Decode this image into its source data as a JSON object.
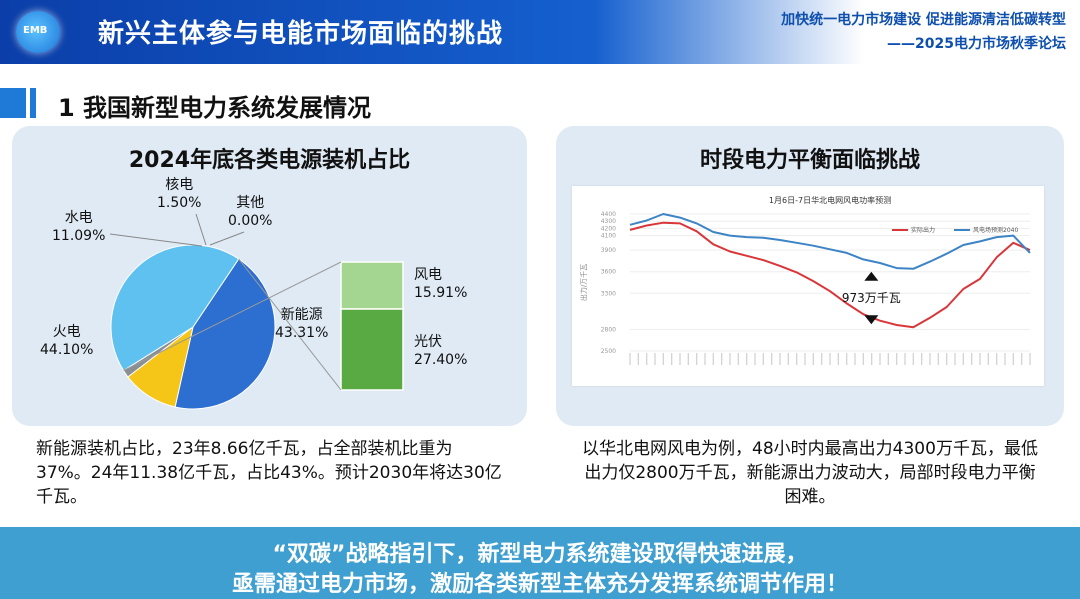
{
  "header": {
    "logo_text": "EMB",
    "title": "新兴主体参与电能市场面临的挑战",
    "subtitle_line1": "加快统一电力市场建设 促进能源清洁低碳转型",
    "subtitle_line2": "——2025电力市场秋季论坛"
  },
  "section": {
    "title": "1 我国新型电力系统发展情况"
  },
  "left_panel": {
    "title": "2024年底各类电源装机占比",
    "pie": [
      {
        "name": "火电",
        "value": "44.10%",
        "pct": 44.1,
        "color": "#2c6fd1"
      },
      {
        "name": "水电",
        "value": "11.09%",
        "pct": 11.09,
        "color": "#f5c518"
      },
      {
        "name": "核电",
        "value": "1.50%",
        "pct": 1.5,
        "color": "#8a8f94"
      },
      {
        "name": "其他",
        "value": "0.00%",
        "pct": 0.0,
        "color": "#e6e6e6"
      },
      {
        "name": "新能源",
        "value": "43.31%",
        "pct": 43.31,
        "color": "#5ec1ef"
      }
    ],
    "breakdown": [
      {
        "name": "风电",
        "value": "15.91%",
        "pct": 15.91,
        "color": "#a5d691"
      },
      {
        "name": "光伏",
        "value": "27.40%",
        "pct": 27.4,
        "color": "#5aaa44"
      }
    ],
    "description": "新能源装机占比，23年8.66亿千瓦，占全部装机比重为37%。24年11.38亿千瓦，占比43%。预计2030年将达30亿千瓦。"
  },
  "right_panel": {
    "title": "时段电力平衡面临挑战",
    "description": "以华北电网风电为例，48小时内最高出力4300万千瓦，最低出力仅2800万千瓦，新能源出力波动大，局部时段电力平衡困难。"
  },
  "chart_data": {
    "type": "line",
    "title": "1月6日-7日华北电网风电功率预测",
    "ylabel": "出力/万千瓦",
    "ylim": [
      2500,
      4400
    ],
    "yticks": [
      4400,
      4300,
      4200,
      4100,
      3900,
      3600,
      3300,
      2800,
      2500
    ],
    "annotation": "973万千瓦",
    "x": [
      0,
      2,
      4,
      6,
      8,
      10,
      12,
      14,
      16,
      18,
      20,
      22,
      24,
      26,
      28,
      30,
      32,
      34,
      36,
      38,
      40,
      42,
      44,
      46,
      48
    ],
    "series": [
      {
        "name": "实际出力",
        "color": "#d9363a",
        "values": [
          4180,
          4240,
          4280,
          4270,
          4160,
          3980,
          3880,
          3820,
          3760,
          3680,
          3590,
          3470,
          3330,
          3160,
          3010,
          2920,
          2860,
          2830,
          2960,
          3110,
          3360,
          3500,
          3800,
          4000,
          3900
        ]
      },
      {
        "name": "风电场预测2040",
        "color": "#3d84c6",
        "values": [
          4250,
          4310,
          4400,
          4350,
          4270,
          4150,
          4100,
          4080,
          4070,
          4040,
          4000,
          3960,
          3910,
          3860,
          3770,
          3720,
          3650,
          3640,
          3740,
          3850,
          3970,
          4020,
          4080,
          4100,
          3860
        ]
      }
    ]
  },
  "banner": {
    "line1": "“双碳”战略指引下，新型电力系统建设取得快速进展，",
    "line2": "亟需通过电力市场，激励各类新型主体充分发挥系统调节作用！"
  }
}
